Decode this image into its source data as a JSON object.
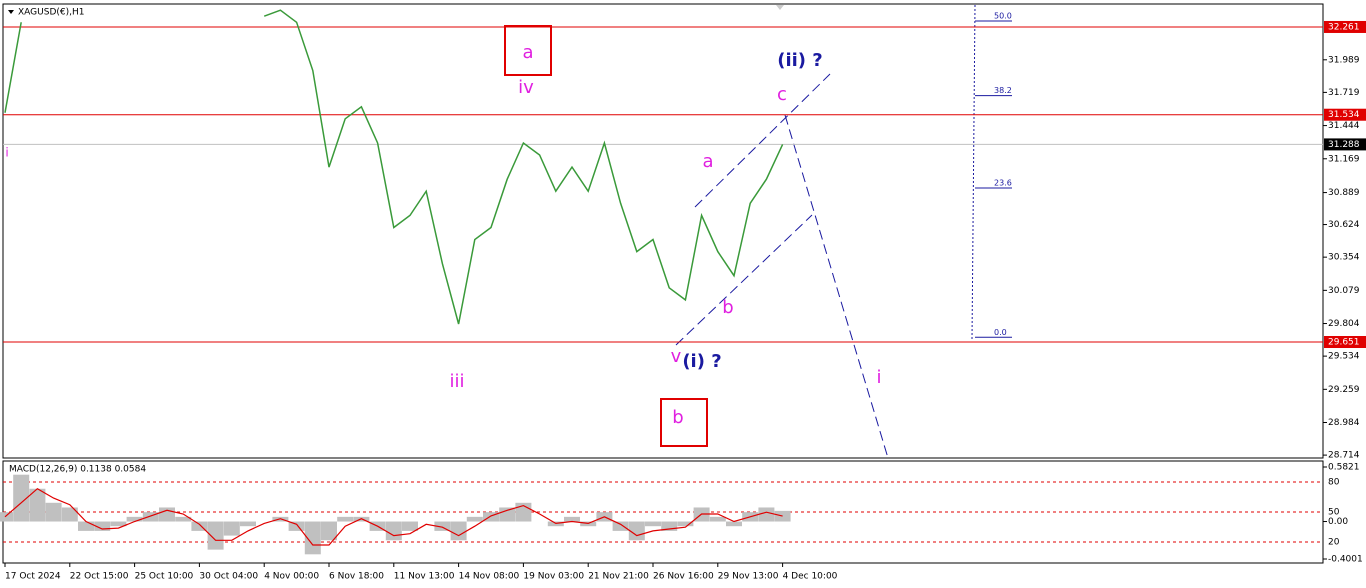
{
  "chart_data": [
    {
      "type": "line",
      "title": "XAGUSD(€),H1",
      "color": "#3a9a3a",
      "categories": [
        "17 Oct 2024",
        null,
        null,
        null,
        "22 Oct 15:00",
        null,
        null,
        null,
        "25 Oct 10:00",
        null,
        null,
        null,
        "30 Oct 04:00",
        null,
        null,
        null,
        "4 Nov 00:00",
        null,
        null,
        null,
        "6 Nov 18:00",
        null,
        null,
        null,
        "11 Nov 13:00",
        null,
        null,
        null,
        "14 Nov 08:00",
        null,
        null,
        null,
        "19 Nov 03:00",
        null,
        null,
        null,
        "21 Nov 21:00",
        null,
        null,
        null,
        "26 Nov 16:00",
        null,
        null,
        null,
        "29 Nov 13:00",
        null,
        null,
        null,
        "4 Dec 10:00"
      ],
      "values": [
        31.55,
        32.3,
        null,
        null,
        null,
        null,
        null,
        null,
        null,
        null,
        null,
        null,
        null,
        null,
        null,
        null,
        32.35,
        32.4,
        32.3,
        31.9,
        31.1,
        31.5,
        31.6,
        31.3,
        30.6,
        30.7,
        30.9,
        30.3,
        29.8,
        30.5,
        30.6,
        31.0,
        31.3,
        31.2,
        30.9,
        31.1,
        30.9,
        31.3,
        30.8,
        30.4,
        30.5,
        30.1,
        30.0,
        30.7,
        30.4,
        30.2,
        30.8,
        31.0,
        31.288
      ],
      "ylim": [
        28.69,
        32.443
      ],
      "yticks": [
        31.989,
        31.719,
        31.444,
        31.169,
        30.889,
        30.624,
        30.354,
        30.079,
        29.804,
        29.534,
        29.259,
        28.984,
        28.714
      ],
      "hlines": [
        32.261,
        31.534,
        29.651
      ],
      "hline_color": "#e00000",
      "current_price": 31.288,
      "fib_levels": [
        {
          "value": 50,
          "label": "50.0"
        },
        {
          "value": 38.2,
          "label": "38.2"
        },
        {
          "value": 23.6,
          "label": "23.6"
        },
        {
          "value": 0,
          "label": "0.0"
        }
      ],
      "fib_anchor_prices": [
        29.69,
        32.31
      ],
      "annotations": [
        {
          "text": "a",
          "color": "#e020e0"
        },
        {
          "text": "iv",
          "color": "#e020e0"
        },
        {
          "text": "(ii) ?",
          "color": "#1a1aa0"
        },
        {
          "text": "c",
          "color": "#e020e0"
        },
        {
          "text": "a",
          "color": "#e020e0"
        },
        {
          "text": "b",
          "color": "#e020e0"
        },
        {
          "text": "v",
          "color": "#e020e0"
        },
        {
          "text": "(i) ?",
          "color": "#1a1aa0"
        },
        {
          "text": "iii",
          "color": "#e020e0"
        },
        {
          "text": "b",
          "color": "#e020e0"
        },
        {
          "text": "i",
          "color": "#e020e0"
        },
        {
          "text": "i",
          "color": "#e020e0"
        }
      ]
    },
    {
      "type": "macd",
      "title": "MACD(12,26,9) 0.1138 0.0584",
      "histogram": [
        0.1,
        0.5,
        0.35,
        0.2,
        0.15,
        -0.1,
        -0.1,
        -0.05,
        0.05,
        0.1,
        0.15,
        0.05,
        -0.1,
        -0.3,
        -0.15,
        -0.05,
        0.0,
        0.05,
        -0.1,
        -0.35,
        -0.2,
        0.05,
        0.05,
        -0.1,
        -0.2,
        -0.1,
        0.0,
        -0.1,
        -0.2,
        0.05,
        0.1,
        0.15,
        0.2,
        0.0,
        -0.05,
        0.05,
        -0.05,
        0.1,
        -0.1,
        -0.2,
        -0.05,
        -0.1,
        -0.05,
        0.15,
        0.05,
        -0.05,
        0.1,
        0.15,
        0.1138
      ],
      "histogram_color": "#c0c0c0",
      "signal": [
        0.05,
        0.2,
        0.35,
        0.25,
        0.18,
        0.0,
        -0.08,
        -0.07,
        0.0,
        0.06,
        0.12,
        0.08,
        -0.03,
        -0.2,
        -0.2,
        -0.1,
        -0.02,
        0.03,
        -0.03,
        -0.25,
        -0.25,
        -0.05,
        0.03,
        -0.05,
        -0.15,
        -0.13,
        -0.03,
        -0.06,
        -0.15,
        -0.05,
        0.06,
        0.12,
        0.17,
        0.08,
        -0.02,
        0.0,
        -0.02,
        0.05,
        -0.03,
        -0.15,
        -0.1,
        -0.08,
        -0.06,
        0.08,
        0.08,
        0.0,
        0.05,
        0.1,
        0.0584
      ],
      "signal_color": "#e00000",
      "ylim": [
        -0.432,
        0.6355
      ],
      "yticks": [
        0.5821,
        {
          "value": 0,
          "label": "0.00"
        },
        -0.4001
      ],
      "level_lim": [
        0,
        100
      ],
      "levels": [
        80,
        50,
        20
      ]
    }
  ]
}
